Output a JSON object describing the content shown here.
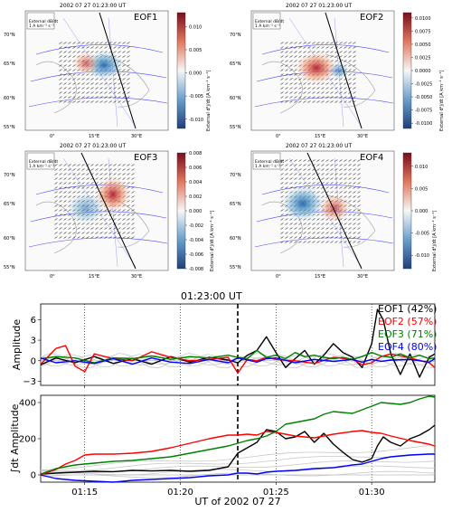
{
  "maps": {
    "timestamp_label": "2002 07 27 01:23:00 UT",
    "legend_title": "External dB/dt",
    "legend_scale": "1 A km⁻¹ s⁻¹",
    "colorbar_label": "External d²j/dt [A km⁻¹ s⁻¹]",
    "lat_labels": [
      "70°N",
      "65°N",
      "60°N",
      "55°N"
    ],
    "lon_labels": [
      "0°",
      "15°E",
      "30°E"
    ],
    "panels": [
      {
        "title": "EOF1",
        "ticks": [
          "0.010",
          "0.005",
          "0.000",
          "-0.005",
          "-0.010"
        ],
        "cmin": -0.012,
        "cmax": 0.013
      },
      {
        "title": "EOF2",
        "ticks": [
          "0.0100",
          "0.0075",
          "0.0050",
          "0.0025",
          "0.0000",
          "-0.0025",
          "-0.0050",
          "-0.0075",
          "-0.0100"
        ],
        "cmin": -0.011,
        "cmax": 0.011
      },
      {
        "title": "EOF3",
        "ticks": [
          "0.008",
          "0.006",
          "0.004",
          "0.002",
          "0.000",
          "-0.002",
          "-0.004",
          "-0.006",
          "-0.008"
        ],
        "cmin": -0.008,
        "cmax": 0.008
      },
      {
        "title": "EOF4",
        "ticks": [
          "0.010",
          "0.005",
          "0.000",
          "-0.005",
          "-0.010"
        ],
        "cmin": -0.013,
        "cmax": 0.013
      }
    ]
  },
  "chart_data": {
    "type": "line",
    "event_label": "01:23:00 UT",
    "event_time": 23.0,
    "x_ticks": [
      15,
      20,
      25,
      30
    ],
    "x_tick_labels": [
      "01:15",
      "01:20",
      "01:25",
      "01:30"
    ],
    "x_range": [
      12.7,
      33.3
    ],
    "xlabel": "UT of 2002 07 27",
    "top": {
      "ylabel": "Amplitude",
      "ylim": [
        -3.6,
        8.3
      ],
      "y_ticks": [
        -3,
        0,
        3,
        6
      ],
      "y_tick_labels": [
        "−3",
        "0",
        "3",
        "6"
      ]
    },
    "bottom": {
      "ylabel": "∫dt Amplitude",
      "ylim": [
        -40,
        440
      ],
      "y_ticks": [
        0,
        200,
        400
      ],
      "y_tick_labels": [
        "0",
        "200",
        "400"
      ]
    },
    "series": [
      {
        "name": "EOF1 (42%)",
        "color": "#000000",
        "x": [
          12.7,
          13.5,
          14.5,
          15.5,
          16.5,
          17.5,
          18.5,
          19.5,
          20.5,
          21.5,
          22.5,
          23.0,
          23.5,
          24.0,
          24.5,
          25.0,
          25.5,
          26.0,
          26.5,
          27.0,
          27.5,
          28.0,
          28.5,
          29.0,
          29.5,
          30.0,
          30.3,
          30.6,
          31.0,
          31.5,
          32.0,
          32.5,
          33.0,
          33.3
        ],
        "amp": [
          -0.6,
          0.4,
          -0.3,
          0.6,
          -0.4,
          0.3,
          -0.5,
          0.6,
          -0.2,
          0.5,
          0.1,
          -0.3,
          0.8,
          1.5,
          3.5,
          1.2,
          -1.0,
          0.3,
          1.5,
          -0.5,
          0.8,
          2.5,
          1.2,
          0.5,
          -1.0,
          2.5,
          7.5,
          6.0,
          1.0,
          -2.0,
          1.0,
          -2.4,
          0.5,
          1.0
        ],
        "integ": [
          5,
          10,
          15,
          20,
          18,
          25,
          22,
          25,
          20,
          25,
          45,
          120,
          150,
          180,
          250,
          240,
          200,
          210,
          240,
          180,
          230,
          170,
          125,
          85,
          70,
          90,
          160,
          210,
          180,
          160,
          200,
          220,
          250,
          275
        ]
      },
      {
        "name": "EOF2 (57%)",
        "color": "#ff0000",
        "x": [
          12.7,
          13.5,
          14.0,
          14.5,
          15.0,
          15.5,
          16.5,
          17.5,
          18.5,
          19.5,
          20.5,
          21.5,
          22.5,
          23.0,
          23.5,
          24.0,
          24.5,
          25.0,
          26.0,
          27.0,
          28.0,
          29.0,
          29.5,
          30.0,
          30.5,
          31.0,
          32.0,
          33.0,
          33.3
        ],
        "amp": [
          -0.5,
          1.8,
          2.2,
          -0.8,
          -1.6,
          1.0,
          0.3,
          0.0,
          1.3,
          0.5,
          0.0,
          0.2,
          0.5,
          -1.8,
          0.2,
          0.0,
          0.5,
          0.2,
          0.0,
          -0.4,
          0.5,
          0.2,
          -0.6,
          -0.3,
          0.6,
          1.0,
          0.4,
          -0.3,
          -1.0
        ],
        "integ": [
          0,
          30,
          60,
          80,
          110,
          115,
          115,
          120,
          130,
          150,
          175,
          200,
          220,
          220,
          225,
          220,
          240,
          235,
          215,
          205,
          225,
          240,
          245,
          235,
          230,
          215,
          190,
          170,
          160
        ]
      },
      {
        "name": "EOF3 (71%)",
        "color": "#008000",
        "x": [
          12.7,
          13.5,
          14.5,
          15.5,
          16.5,
          17.5,
          18.5,
          19.5,
          20.5,
          21.5,
          22.5,
          23.0,
          23.5,
          24.0,
          24.5,
          25.0,
          25.5,
          26.0,
          26.5,
          27.0,
          27.5,
          28.0,
          28.5,
          29.0,
          29.5,
          30.0,
          30.5,
          31.0,
          31.5,
          32.0,
          32.5,
          33.0,
          33.3
        ],
        "amp": [
          0.3,
          0.6,
          0.4,
          -0.3,
          0.4,
          0.3,
          0.7,
          0.2,
          0.6,
          0.4,
          0.8,
          0.5,
          0.3,
          1.5,
          0.5,
          0.8,
          0.3,
          1.2,
          0.6,
          0.8,
          0.5,
          0.3,
          0.5,
          0.2,
          0.6,
          1.2,
          0.7,
          0.5,
          1.0,
          0.4,
          0.8,
          0.3,
          0.4
        ],
        "integ": [
          5,
          35,
          55,
          65,
          75,
          80,
          90,
          100,
          120,
          140,
          160,
          175,
          190,
          200,
          215,
          240,
          280,
          290,
          300,
          310,
          335,
          350,
          345,
          340,
          360,
          380,
          400,
          395,
          390,
          400,
          420,
          435,
          430
        ]
      },
      {
        "name": "EOF4 (80%)",
        "color": "#0000ff",
        "x": [
          12.7,
          13.5,
          14.5,
          15.5,
          16.5,
          17.5,
          18.5,
          19.5,
          20.5,
          21.5,
          22.5,
          23.0,
          23.5,
          24.0,
          24.5,
          25.0,
          26.0,
          27.0,
          28.0,
          29.0,
          29.5,
          30.0,
          30.5,
          31.0,
          32.0,
          33.0,
          33.3
        ],
        "amp": [
          0.4,
          -0.3,
          0.0,
          -0.4,
          0.3,
          -0.5,
          0.4,
          -0.2,
          -0.4,
          0.2,
          -0.3,
          0.4,
          0.1,
          -0.2,
          0.3,
          0.4,
          -0.3,
          0.2,
          -0.1,
          0.2,
          -0.2,
          0.2,
          -0.1,
          0.1,
          0.2,
          -0.2,
          0.3
        ],
        "integ": [
          0,
          -20,
          -30,
          -35,
          -40,
          -30,
          -25,
          -20,
          -15,
          -5,
          0,
          10,
          10,
          5,
          15,
          20,
          25,
          35,
          40,
          55,
          60,
          75,
          90,
          100,
          110,
          115,
          115
        ]
      }
    ]
  }
}
